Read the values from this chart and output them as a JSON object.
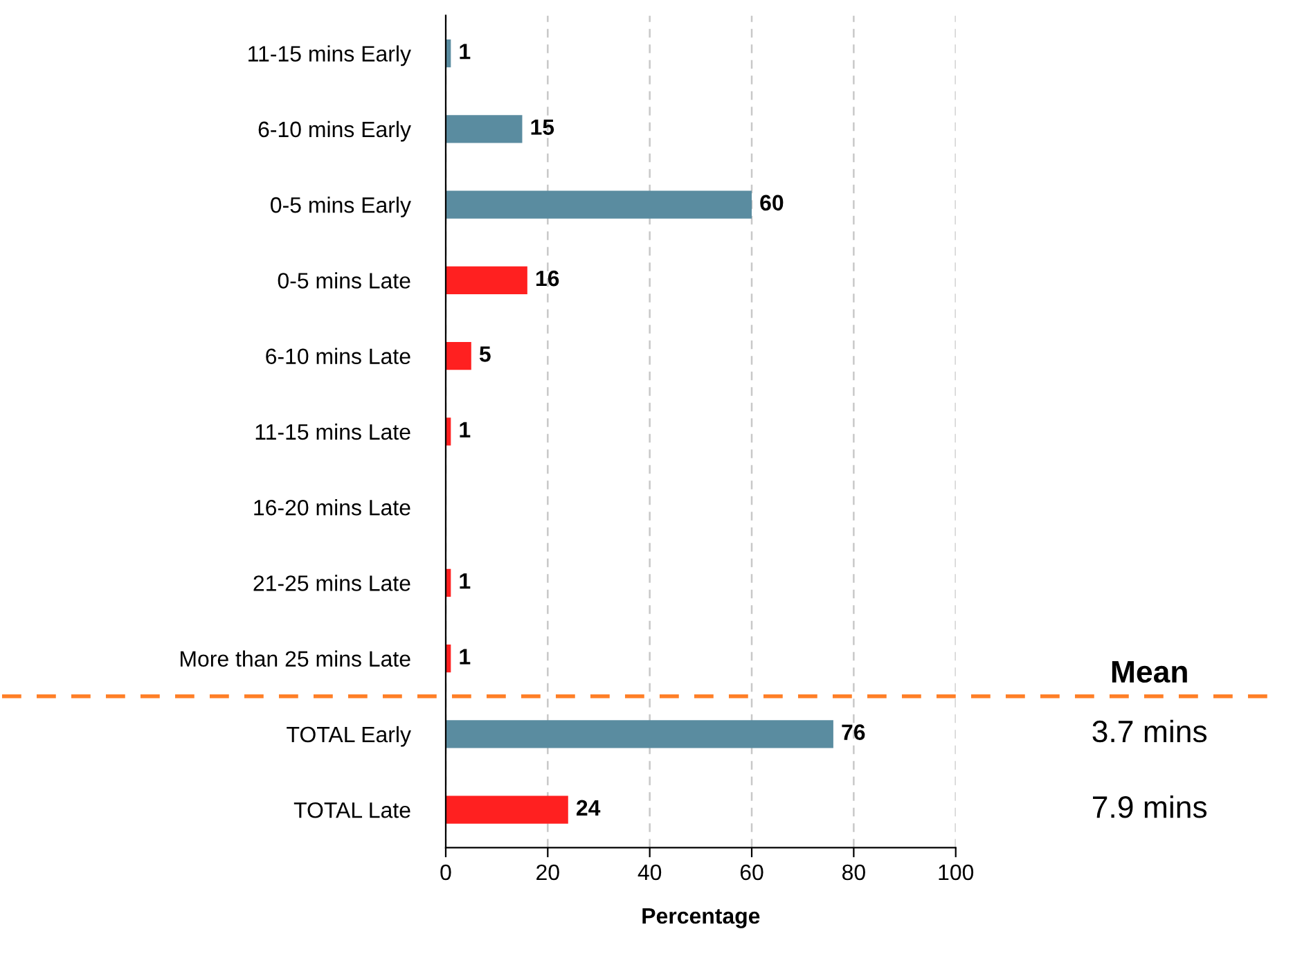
{
  "chart_data": {
    "type": "bar",
    "orientation": "horizontal",
    "categories": [
      "11-15 mins Early",
      "6-10 mins Early",
      "0-5 mins Early",
      "0-5 mins Late",
      "6-10 mins Late",
      "11-15 mins Late",
      "16-20 mins Late",
      "21-25 mins Late",
      "More than 25 mins Late",
      "TOTAL Early",
      "TOTAL Late"
    ],
    "values": [
      1,
      15,
      60,
      16,
      5,
      1,
      null,
      1,
      1,
      76,
      24
    ],
    "colors": [
      "#5a8ca0",
      "#5a8ca0",
      "#5a8ca0",
      "#ff2020",
      "#ff2020",
      "#ff2020",
      "#ff2020",
      "#ff2020",
      "#ff2020",
      "#5a8ca0",
      "#ff2020"
    ],
    "data_labels": true,
    "xlabel": "Percentage",
    "xlim": [
      0,
      100
    ],
    "xticks": [
      0,
      20,
      40,
      60,
      80,
      100
    ],
    "grid": "x",
    "ref_lines": [
      {
        "axis": "y",
        "value": "More than 25 mins Late",
        "color": "#ff7f27",
        "line_style": "dashed"
      }
    ],
    "annotations": [
      "Mean",
      "3.7 mins",
      "7.9 mins"
    ]
  }
}
